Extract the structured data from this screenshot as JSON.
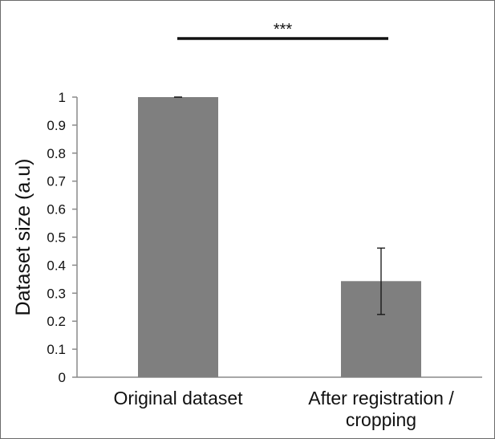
{
  "chart_data": {
    "type": "bar",
    "categories": [
      "Original dataset",
      "After registration / cropping"
    ],
    "category_label_lines": [
      [
        "Original dataset"
      ],
      [
        "After registration /",
        "cropping"
      ]
    ],
    "values": [
      1.0,
      0.343
    ],
    "error_bars": [
      {
        "low": 1.0,
        "high": 1.0
      },
      {
        "low": 0.224,
        "high": 0.461
      }
    ],
    "ylabel": "Dataset size (a.u)",
    "xlabel": "",
    "ylim": [
      0,
      1
    ],
    "yticks": [
      0,
      0.1,
      0.2,
      0.3,
      0.4,
      0.5,
      0.6,
      0.7,
      0.8,
      0.9,
      1
    ],
    "ytick_labels": [
      "0",
      "0.1",
      "0.2",
      "0.3",
      "0.4",
      "0.5",
      "0.6",
      "0.7",
      "0.8",
      "0.9",
      "1"
    ],
    "significance": {
      "between": [
        0,
        1
      ],
      "label": "***"
    },
    "bar_color": "#7f7f7f",
    "grid": false,
    "legend": "none"
  }
}
